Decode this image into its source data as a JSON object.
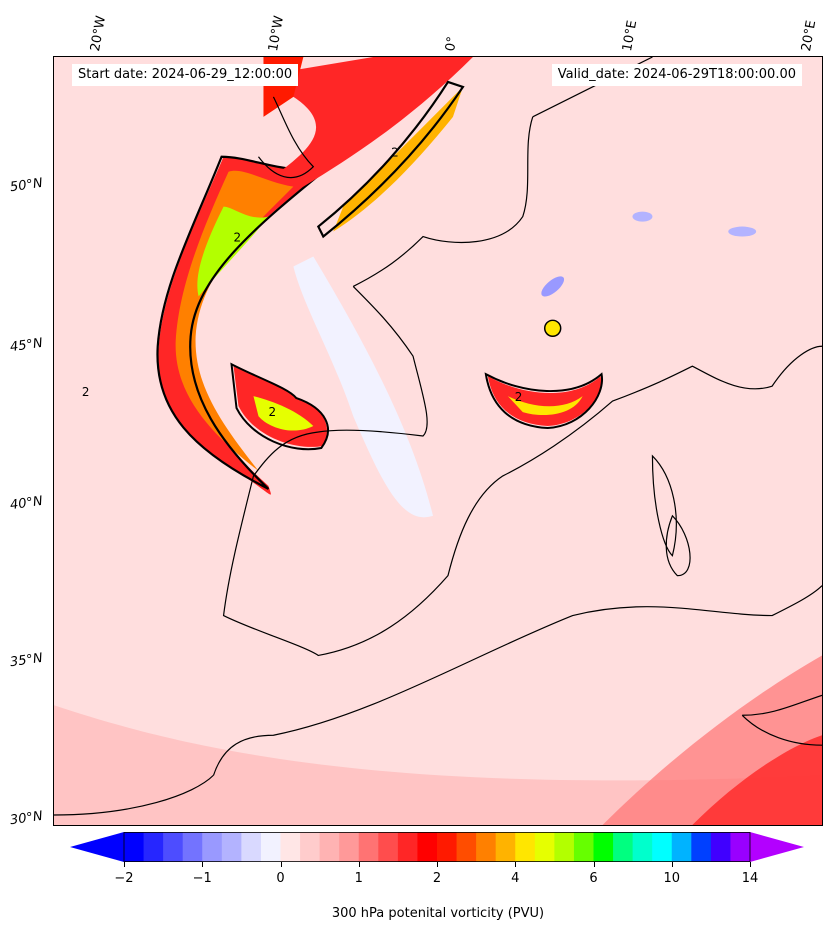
{
  "header": {
    "start_date": "Start date: 2024-06-29_12:00:00",
    "valid_date": "Valid_date: 2024-06-29T18:00:00.00"
  },
  "axes": {
    "lon_labels": [
      "20°W",
      "10°W",
      "0°",
      "10°E",
      "20°E"
    ],
    "lat_labels": [
      "50°N",
      "45°N",
      "40°N",
      "35°N",
      "30°N"
    ]
  },
  "contours": {
    "level_label": "2"
  },
  "colorbar": {
    "title": "300 hPa potenital vorticity (PVU)",
    "tick_labels": [
      "−2",
      "−1",
      "0",
      "1",
      "2",
      "4",
      "6",
      "10",
      "14"
    ],
    "colors": [
      "#0000ff",
      "#2626ff",
      "#4d4dff",
      "#7373ff",
      "#9999ff",
      "#b3b3ff",
      "#d9d9ff",
      "#f2f2ff",
      "#ffe6e6",
      "#ffcccc",
      "#ffb3b3",
      "#ff9999",
      "#ff7373",
      "#ff4d4d",
      "#ff2626",
      "#ff0000",
      "#ff1a00",
      "#ff4d00",
      "#ff8000",
      "#ffb300",
      "#ffe600",
      "#e6ff00",
      "#b3ff00",
      "#66ff00",
      "#00ff00",
      "#00ff80",
      "#00ffcc",
      "#00ffff",
      "#00b3ff",
      "#0040ff",
      "#4000ff",
      "#9900ff"
    ],
    "under_color": "#0000ff",
    "over_color": "#b300ff"
  }
}
